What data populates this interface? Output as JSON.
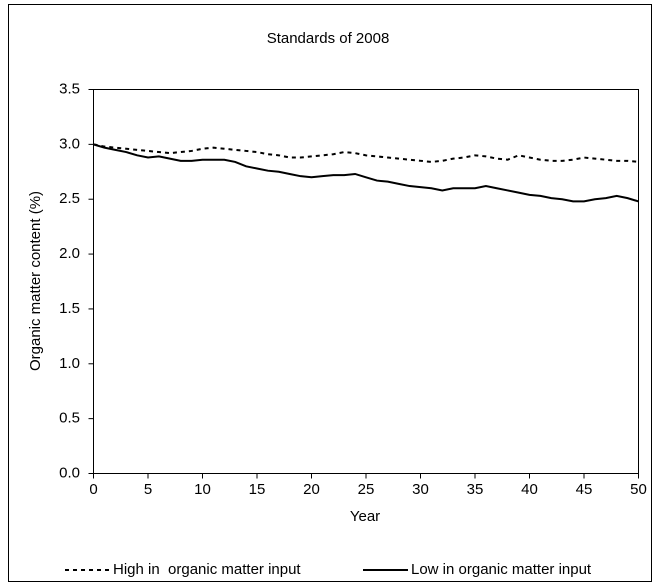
{
  "chart_data": {
    "type": "line",
    "title": "Standards of 2008",
    "x_label": "Year",
    "y_label": "Organic matter content (%)",
    "x": [
      0,
      1,
      2,
      3,
      4,
      5,
      6,
      7,
      8,
      9,
      10,
      11,
      12,
      13,
      14,
      15,
      16,
      17,
      18,
      19,
      20,
      21,
      22,
      23,
      24,
      25,
      26,
      27,
      28,
      29,
      30,
      31,
      32,
      33,
      34,
      35,
      36,
      37,
      38,
      39,
      40,
      41,
      42,
      43,
      44,
      45,
      46,
      47,
      48,
      49,
      50
    ],
    "series": [
      {
        "name": "High in  organic matter input",
        "color": "#000000",
        "dash": "dotted",
        "values": [
          3.0,
          2.98,
          2.97,
          2.96,
          2.95,
          2.94,
          2.93,
          2.92,
          2.93,
          2.94,
          2.96,
          2.97,
          2.96,
          2.95,
          2.94,
          2.93,
          2.91,
          2.9,
          2.88,
          2.88,
          2.89,
          2.9,
          2.91,
          2.93,
          2.92,
          2.9,
          2.89,
          2.88,
          2.87,
          2.86,
          2.85,
          2.84,
          2.85,
          2.87,
          2.88,
          2.9,
          2.89,
          2.87,
          2.86,
          2.9,
          2.88,
          2.86,
          2.85,
          2.85,
          2.86,
          2.88,
          2.87,
          2.86,
          2.85,
          2.85,
          2.84
        ]
      },
      {
        "name": "Low in organic matter input",
        "color": "#000000",
        "dash": "solid",
        "values": [
          3.0,
          2.97,
          2.95,
          2.93,
          2.9,
          2.88,
          2.89,
          2.87,
          2.85,
          2.85,
          2.86,
          2.86,
          2.86,
          2.84,
          2.8,
          2.78,
          2.76,
          2.75,
          2.73,
          2.71,
          2.7,
          2.71,
          2.72,
          2.72,
          2.73,
          2.7,
          2.67,
          2.66,
          2.64,
          2.62,
          2.61,
          2.6,
          2.58,
          2.6,
          2.6,
          2.6,
          2.62,
          2.6,
          2.58,
          2.56,
          2.54,
          2.53,
          2.51,
          2.5,
          2.48,
          2.48,
          2.5,
          2.51,
          2.53,
          2.51,
          2.48
        ]
      }
    ],
    "xlim": [
      0,
      50
    ],
    "xticks": [
      0,
      5,
      10,
      15,
      20,
      25,
      30,
      35,
      40,
      45,
      50
    ],
    "ylim": [
      0,
      3.5
    ],
    "yticks": [
      {
        "value": 0,
        "label": "0.0"
      },
      0.5,
      {
        "value": 1,
        "label": "1.0"
      },
      1.5,
      {
        "value": 2,
        "label": "2.0"
      },
      2.5,
      {
        "value": 3,
        "label": "3.0"
      },
      3.5
    ],
    "grid": false,
    "legend": "bottom"
  }
}
